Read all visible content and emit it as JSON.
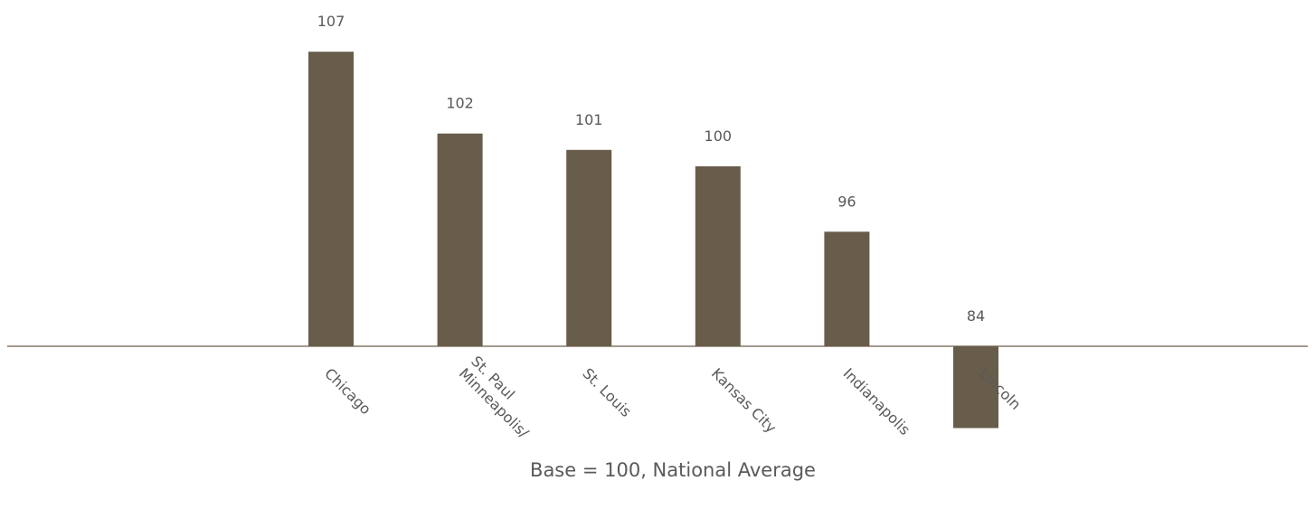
{
  "chart_data": {
    "type": "bar",
    "categories": [
      "Chicago",
      "Minneapolis/\nSt. Paul",
      "St. Louis",
      "Kansas City",
      "Indianapolis",
      "Lincoln"
    ],
    "values": [
      107,
      102,
      101,
      100,
      96,
      84
    ],
    "data_labels": [
      "107",
      "102",
      "101",
      "100",
      "96",
      "84"
    ],
    "baseline": 89,
    "footnote": "Base = 100, National Average",
    "title": "",
    "xlabel": "",
    "ylabel": "",
    "ylim": [
      89,
      108
    ],
    "grid": false,
    "legend": "none",
    "colors": {
      "bar": "#685D4A",
      "axis": "#6E5E4C",
      "text": "#595959"
    }
  }
}
